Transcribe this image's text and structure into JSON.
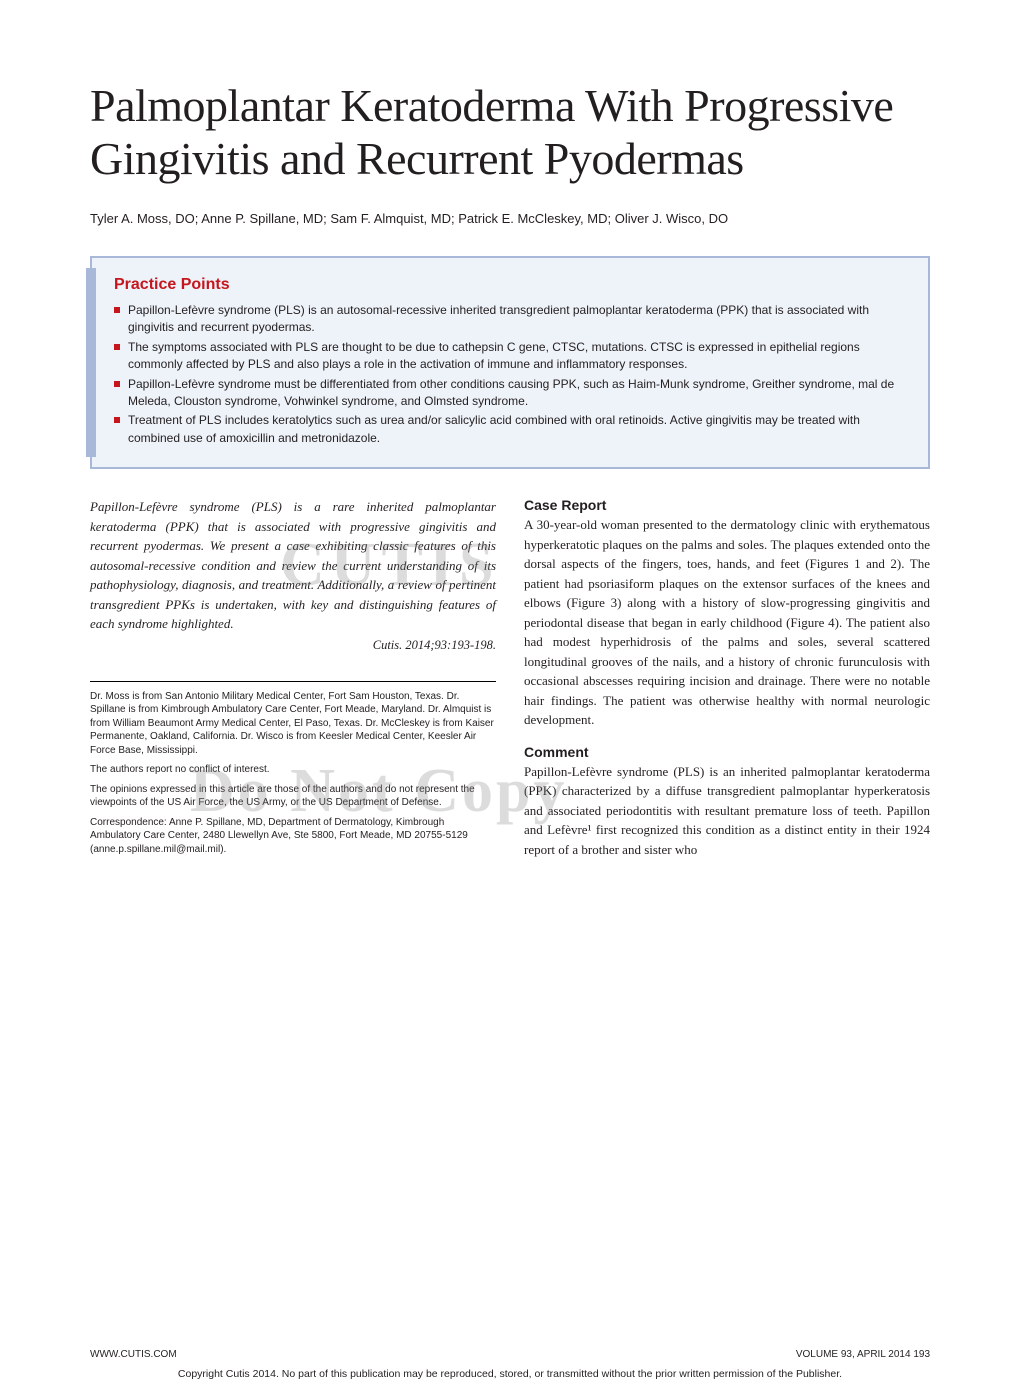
{
  "title": "Palmoplantar Keratoderma With Progressive Gingivitis and Recurrent Pyodermas",
  "authors": "Tyler A. Moss, DO; Anne P. Spillane, MD; Sam F. Almquist, MD; Patrick E. McCleskey, MD; Oliver J. Wisco, DO",
  "practice": {
    "title": "Practice Points",
    "items": [
      "Papillon-Lefèvre syndrome (PLS) is an autosomal-recessive inherited transgredient palmoplantar keratoderma (PPK) that is associated with gingivitis and recurrent pyodermas.",
      "The symptoms associated with PLS are thought to be due to cathepsin C gene, CTSC, mutations. CTSC is expressed in epithelial regions commonly affected by PLS and also plays a role in the activation of immune and inflammatory responses.",
      "Papillon-Lefèvre syndrome must be differentiated from other conditions causing PPK, such as Haim-Munk syndrome, Greither syndrome, mal de Meleda, Clouston syndrome, Vohwinkel syndrome, and Olmsted syndrome.",
      "Treatment of PLS includes keratolytics such as urea and/or salicylic acid combined with oral retinoids. Active gingivitis may be treated with combined use of amoxicillin and metronidazole."
    ]
  },
  "watermarks": {
    "w1": "CUTIS",
    "w2": "Do Not Copy"
  },
  "abstract": "Papillon-Lefèvre syndrome (PLS) is a rare inherited palmoplantar keratoderma (PPK) that is associated with progressive gingivitis and recurrent pyodermas. We present a case exhibiting classic features of this autosomal-recessive condition and review the current understanding of its pathophysiology, diagnosis, and treatment. Additionally, a review of pertinent transgredient PPKs is undertaken, with key and distinguishing features of each syndrome highlighted.",
  "cutis_citation": "Cutis. 2014;93:193-198.",
  "affiliations": {
    "p1": "Dr. Moss is from San Antonio Military Medical Center, Fort Sam Houston, Texas. Dr. Spillane is from Kimbrough Ambulatory Care Center, Fort Meade, Maryland. Dr. Almquist is from William Beaumont Army Medical Center, El Paso, Texas. Dr. McCleskey is from Kaiser Permanente, Oakland, California. Dr. Wisco is from Keesler Medical Center, Keesler Air Force Base, Mississippi.",
    "p2": "The authors report no conflict of interest.",
    "p3": "The opinions expressed in this article are those of the authors and do not represent the viewpoints of the US Air Force, the US Army, or the US Department of Defense.",
    "p4": "Correspondence: Anne P. Spillane, MD, Department of Dermatology, Kimbrough Ambulatory Care Center, 2480 Llewellyn Ave, Ste 5800, Fort Meade, MD 20755-5129 (anne.p.spillane.mil@mail.mil)."
  },
  "case_report": {
    "heading": "Case Report",
    "text": "A 30-year-old woman presented to the dermatology clinic with erythematous hyperkeratotic plaques on the palms and soles. The plaques extended onto the dorsal aspects of the fingers, toes, hands, and feet (Figures 1 and 2). The patient had psoriasiform plaques on the extensor surfaces of the knees and elbows (Figure 3) along with a history of slow-progressing gingivitis and periodontal disease that began in early childhood (Figure 4). The patient also had modest hyperhidrosis of the palms and soles, several scattered longitudinal grooves of the nails, and a history of chronic furunculosis with occasional abscesses requiring incision and drainage. There were no notable hair findings. The patient was otherwise healthy with normal neurologic development."
  },
  "comment": {
    "heading": "Comment",
    "text": "Papillon-Lefèvre syndrome (PLS) is an inherited palmoplantar keratoderma (PPK) characterized by a diffuse transgredient palmoplantar hyperkeratosis and associated periodontitis with resultant premature loss of teeth. Papillon and Lefèvre¹ first recognized this condition as a distinct entity in their 1924 report of a brother and sister who"
  },
  "footer": {
    "left": "WWW.CUTIS.COM",
    "right": "VOLUME 93, APRIL 2014  193"
  },
  "copyright": "Copyright Cutis 2014. No part of this publication may be reproduced, stored, or transmitted without the prior written permission of the Publisher.",
  "colors": {
    "practice_border": "#a8b8d8",
    "practice_bg": "#eef2f9",
    "red": "#c4161c",
    "text": "#231f20",
    "watermark": "rgba(128,128,128,0.28)"
  }
}
